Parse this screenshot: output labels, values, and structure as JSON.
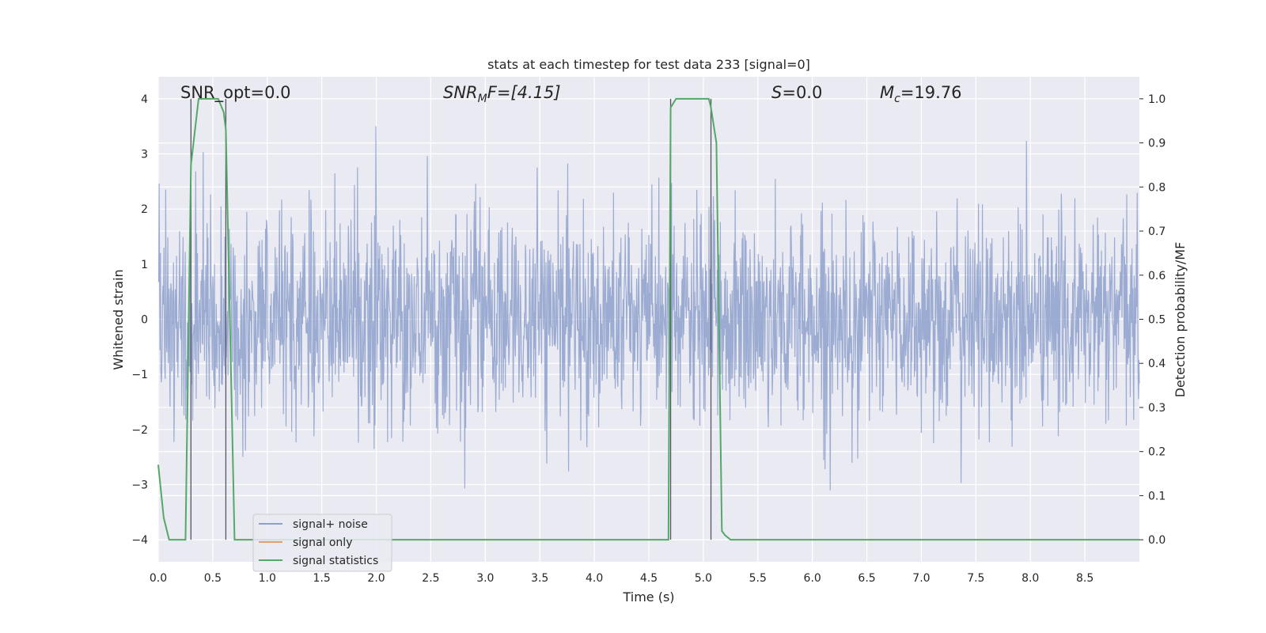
{
  "chart_data": {
    "type": "line",
    "title": "stats at each timestep for test data 233 [signal=0]",
    "xlabel": "Time (s)",
    "ylabel": "Whitened strain",
    "ylabel_right": "Detection probability/MF",
    "xlim": [
      0.0,
      9.0
    ],
    "ylim": [
      -4.4,
      4.4
    ],
    "ylim_right": [
      -0.05,
      1.05
    ],
    "x_ticks": [
      0.0,
      0.5,
      1.0,
      1.5,
      2.0,
      2.5,
      3.0,
      3.5,
      4.0,
      4.5,
      5.0,
      5.5,
      6.0,
      6.5,
      7.0,
      7.5,
      8.0,
      8.5
    ],
    "x_tick_labels": [
      "0.0",
      "0.5",
      "1.0",
      "1.5",
      "2.0",
      "2.5",
      "3.0",
      "3.5",
      "4.0",
      "4.5",
      "5.0",
      "5.5",
      "6.0",
      "6.5",
      "7.0",
      "7.5",
      "8.0",
      "8.5"
    ],
    "y_ticks": [
      4,
      3,
      2,
      1,
      0,
      -1,
      -2,
      -3,
      -4
    ],
    "y_tick_labels": [
      "4",
      "3",
      "2",
      "1",
      "0",
      "−1",
      "−2",
      "−3",
      "−4"
    ],
    "y_right_ticks": [
      1.0,
      0.9,
      0.8,
      0.7,
      0.6,
      0.5,
      0.4,
      0.3,
      0.2,
      0.1,
      0.0
    ],
    "y_right_tick_labels": [
      "1.0",
      "0.9",
      "0.8",
      "0.7",
      "0.6",
      "0.5",
      "0.4",
      "0.3",
      "0.2",
      "0.1",
      "0.0"
    ],
    "grid": true,
    "legend_position": "lower-left",
    "series": [
      {
        "name": "signal+ noise",
        "axis": "left",
        "color": "#8da0cb",
        "noise_std": 0.8,
        "noise_peak": 3.6,
        "dt": 0.004
      },
      {
        "name": "signal only",
        "axis": "left",
        "color": "#e0a070",
        "values": []
      },
      {
        "name": "signal statistics",
        "axis": "right",
        "color": "#55a868",
        "x": [
          0.0,
          0.05,
          0.1,
          0.2,
          0.25,
          0.3,
          0.37,
          0.55,
          0.6,
          0.62,
          0.7,
          0.75,
          4.5,
          4.68,
          4.7,
          4.75,
          4.85,
          5.05,
          5.07,
          5.12,
          5.17,
          5.2,
          5.25,
          5.3,
          9.0
        ],
        "y": [
          0.17,
          0.05,
          0.0,
          0.0,
          0.0,
          0.85,
          1.0,
          1.0,
          0.97,
          0.93,
          0.0,
          0.0,
          0.0,
          0.0,
          0.98,
          1.0,
          1.0,
          1.0,
          0.98,
          0.9,
          0.02,
          0.01,
          0.0,
          0.0,
          0.0
        ]
      }
    ],
    "vlines_left": [
      {
        "x": 0.3,
        "y_bottom": -4.0,
        "y_top": 4.0
      },
      {
        "x": 0.62,
        "y_bottom": -4.0,
        "y_top": 4.0
      },
      {
        "x": 4.7,
        "y_bottom": -4.0,
        "y_top": 4.0
      },
      {
        "x": 5.07,
        "y_bottom": -4.0,
        "y_top": 4.0
      }
    ],
    "annotations": [
      {
        "name": "snr-opt",
        "text": "SNR_opt=0.0",
        "x": 0.2
      },
      {
        "name": "snr-mf",
        "text": "SNR_MF=[4.15]",
        "x": 2.6
      },
      {
        "name": "s-value",
        "text": "S=0.0",
        "x": 5.6
      },
      {
        "name": "mc-value",
        "text": "M_c=19.76",
        "x": 6.6
      }
    ],
    "annotation_parts": {
      "snr_opt": "SNR_opt=0.0",
      "snr_mf_main": "SNR",
      "snr_mf_sub": "M",
      "snr_mf_rest": "F=[4.15]",
      "s_main": "S",
      "s_rest": "=0.0",
      "mc_main": "M",
      "mc_sub": "c",
      "mc_rest": "=19.76"
    },
    "legend": [
      "signal+ noise",
      "signal only",
      "signal statistics"
    ]
  }
}
